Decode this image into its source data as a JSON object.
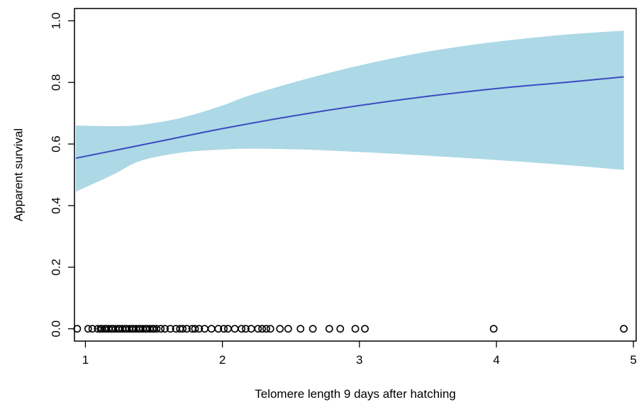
{
  "chart_data": {
    "type": "line",
    "xlabel": "Telomere length 9 days after hatching",
    "ylabel": "Apparent survival",
    "xlim": [
      0.92,
      5.02
    ],
    "ylim": [
      -0.04,
      1.04
    ],
    "xticks": [
      1,
      2,
      3,
      4,
      5
    ],
    "yticks": [
      0.0,
      0.2,
      0.4,
      0.6,
      0.8,
      1.0
    ],
    "xtick_labels": [
      "1",
      "2",
      "3",
      "4",
      "5"
    ],
    "ytick_labels": [
      "0.0",
      "0.2",
      "0.4",
      "0.6",
      "0.8",
      "1.0"
    ],
    "grid": false,
    "legend": null,
    "colors": {
      "band": "#add8e6",
      "line": "#3b4cc0",
      "points": "#000000",
      "axes": "#000000"
    },
    "series": [
      {
        "kind": "ci_band",
        "x": [
          0.93,
          1.2,
          1.4,
          1.7,
          2.0,
          2.2,
          2.6,
          3.0,
          3.5,
          4.0,
          4.5,
          4.93
        ],
        "upper": [
          0.66,
          0.658,
          0.662,
          0.685,
          0.725,
          0.758,
          0.81,
          0.855,
          0.9,
          0.932,
          0.955,
          0.968
        ],
        "lower": [
          0.445,
          0.5,
          0.545,
          0.572,
          0.582,
          0.585,
          0.582,
          0.574,
          0.562,
          0.548,
          0.532,
          0.516
        ]
      },
      {
        "kind": "fit",
        "x": [
          0.93,
          1.2,
          1.5,
          2.0,
          2.5,
          3.0,
          3.5,
          4.0,
          4.5,
          4.93
        ],
        "y": [
          0.554,
          0.578,
          0.605,
          0.65,
          0.69,
          0.725,
          0.755,
          0.78,
          0.8,
          0.818
        ]
      },
      {
        "kind": "observations",
        "x": [
          0.94,
          1.02,
          1.05,
          1.09,
          1.11,
          1.12,
          1.14,
          1.15,
          1.17,
          1.19,
          1.2,
          1.22,
          1.24,
          1.25,
          1.27,
          1.29,
          1.3,
          1.32,
          1.34,
          1.35,
          1.37,
          1.39,
          1.4,
          1.42,
          1.44,
          1.45,
          1.47,
          1.49,
          1.5,
          1.52,
          1.55,
          1.58,
          1.62,
          1.66,
          1.69,
          1.71,
          1.74,
          1.78,
          1.8,
          1.83,
          1.87,
          1.92,
          1.97,
          2.01,
          2.04,
          2.09,
          2.14,
          2.17,
          2.21,
          2.26,
          2.29,
          2.32,
          2.35,
          2.42,
          2.48,
          2.57,
          2.66,
          2.78,
          2.86,
          2.97,
          3.04,
          3.98,
          4.93
        ],
        "y": 0
      }
    ]
  }
}
